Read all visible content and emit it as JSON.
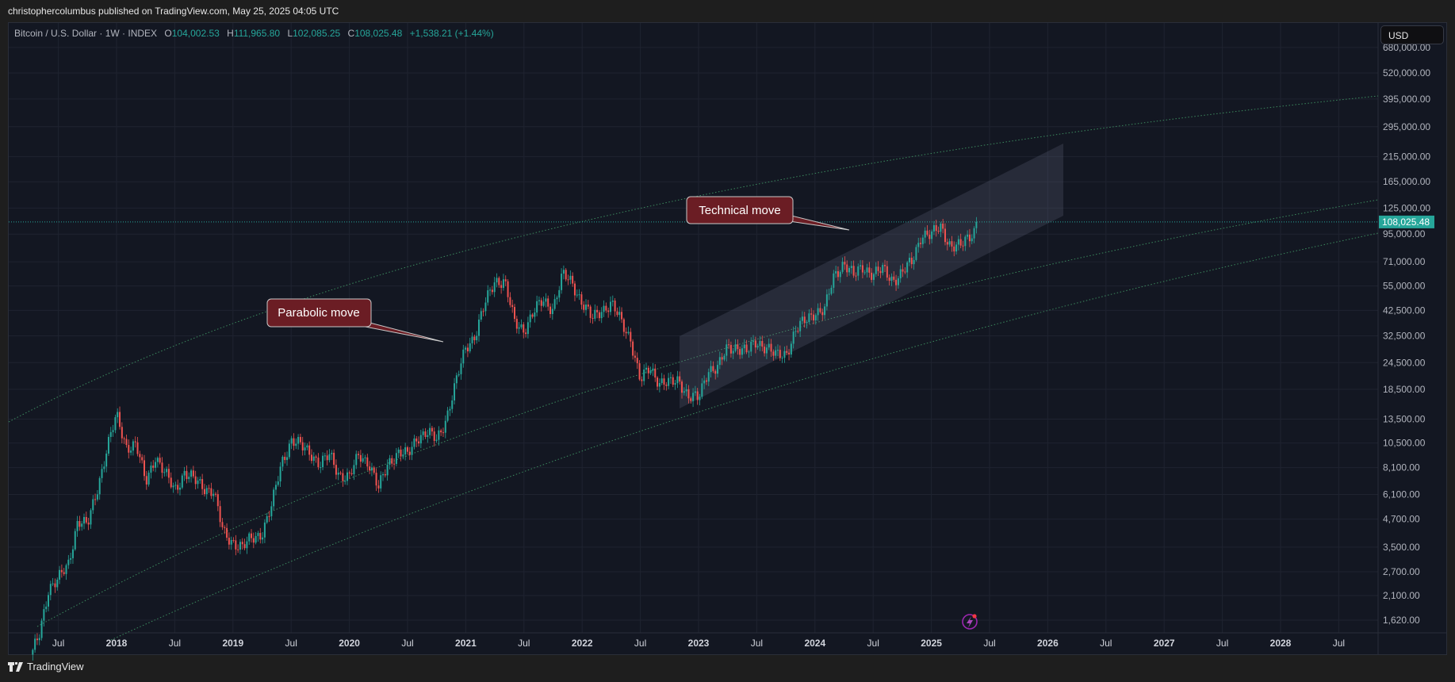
{
  "header": {
    "published": "christophercolumbus published on TradingView.com, May 25, 2025 04:05 UTC"
  },
  "legend": {
    "symbol": "Bitcoin / U.S. Dollar · 1W · INDEX",
    "open_label": "O",
    "open": "104,002.53",
    "high_label": "H",
    "high": "111,965.80",
    "low_label": "L",
    "low": "102,085.25",
    "close_label": "C",
    "close": "108,025.48",
    "change": "+1,538.21 (+1.44%)"
  },
  "currency_button": "USD",
  "footer": {
    "brand": "TradingView"
  },
  "colors": {
    "background": "#131722",
    "up": "#26a69a",
    "down": "#ef5350",
    "band": "#3c8a5e",
    "callout": "#6b1d24",
    "alert_icon": "#9c27b0"
  },
  "icons": {
    "alert": "lightning-alert-icon",
    "logo": "tradingview-logo-icon"
  },
  "chart_data": {
    "type": "candlestick",
    "interval": "1W",
    "y_scale": "log",
    "ylim": [
      1450,
      700000
    ],
    "xlim": [
      "2017-04",
      "2028-12"
    ],
    "grid": true,
    "y_ticks": [
      "680,000.00",
      "520,000.00",
      "395,000.00",
      "295,000.00",
      "215,000.00",
      "165,000.00",
      "125,000.00",
      "95,000.00",
      "71,000.00",
      "55,000.00",
      "42,500.00",
      "32,500.00",
      "24,500.00",
      "18,500.00",
      "13,500.00",
      "10,500.00",
      "8,100.00",
      "6,100.00",
      "4,700.00",
      "3,500.00",
      "2,700.00",
      "2,100.00",
      "1,620.00"
    ],
    "x_ticks": [
      "Jul",
      "2018",
      "Jul",
      "2019",
      "Jul",
      "2020",
      "Jul",
      "2021",
      "Jul",
      "2022",
      "Jul",
      "2023",
      "Jul",
      "2024",
      "Jul",
      "2025",
      "Jul",
      "2026",
      "Jul",
      "2027",
      "Jul",
      "2028",
      "Jul"
    ],
    "last_price": "108,025.48",
    "last_price_value": 108025.48,
    "monthly_close": [
      [
        "2017-04",
        1350
      ],
      [
        "2017-05",
        2300
      ],
      [
        "2017-06",
        2480
      ],
      [
        "2017-07",
        2870
      ],
      [
        "2017-08",
        4700
      ],
      [
        "2017-09",
        4340
      ],
      [
        "2017-10",
        6450
      ],
      [
        "2017-11",
        9950
      ],
      [
        "2017-12",
        13850
      ],
      [
        "2018-01",
        10200
      ],
      [
        "2018-02",
        10300
      ],
      [
        "2018-03",
        6900
      ],
      [
        "2018-04",
        9240
      ],
      [
        "2018-05",
        7500
      ],
      [
        "2018-06",
        6400
      ],
      [
        "2018-07",
        7730
      ],
      [
        "2018-08",
        7030
      ],
      [
        "2018-09",
        6630
      ],
      [
        "2018-10",
        6320
      ],
      [
        "2018-11",
        4020
      ],
      [
        "2018-12",
        3740
      ],
      [
        "2019-01",
        3460
      ],
      [
        "2019-02",
        3850
      ],
      [
        "2019-03",
        4100
      ],
      [
        "2019-04",
        5350
      ],
      [
        "2019-05",
        8570
      ],
      [
        "2019-06",
        10800
      ],
      [
        "2019-07",
        10080
      ],
      [
        "2019-08",
        9600
      ],
      [
        "2019-09",
        8300
      ],
      [
        "2019-10",
        9200
      ],
      [
        "2019-11",
        7570
      ],
      [
        "2019-12",
        7200
      ],
      [
        "2020-01",
        9350
      ],
      [
        "2020-02",
        8600
      ],
      [
        "2020-03",
        6400
      ],
      [
        "2020-04",
        8600
      ],
      [
        "2020-05",
        9450
      ],
      [
        "2020-06",
        9140
      ],
      [
        "2020-07",
        11350
      ],
      [
        "2020-08",
        11650
      ],
      [
        "2020-09",
        10780
      ],
      [
        "2020-10",
        13800
      ],
      [
        "2020-11",
        19700
      ],
      [
        "2020-12",
        29000
      ],
      [
        "2021-01",
        33100
      ],
      [
        "2021-02",
        45200
      ],
      [
        "2021-03",
        58900
      ],
      [
        "2021-04",
        57700
      ],
      [
        "2021-05",
        37300
      ],
      [
        "2021-06",
        35000
      ],
      [
        "2021-07",
        41500
      ],
      [
        "2021-08",
        47100
      ],
      [
        "2021-09",
        43800
      ],
      [
        "2021-10",
        61300
      ],
      [
        "2021-11",
        57000
      ],
      [
        "2021-12",
        46300
      ],
      [
        "2022-01",
        38500
      ],
      [
        "2022-02",
        43200
      ],
      [
        "2022-03",
        45500
      ],
      [
        "2022-04",
        37700
      ],
      [
        "2022-05",
        31800
      ],
      [
        "2022-06",
        19900
      ],
      [
        "2022-07",
        23300
      ],
      [
        "2022-08",
        20050
      ],
      [
        "2022-09",
        19400
      ],
      [
        "2022-10",
        20500
      ],
      [
        "2022-11",
        17150
      ],
      [
        "2022-12",
        16550
      ],
      [
        "2023-01",
        23100
      ],
      [
        "2023-02",
        23150
      ],
      [
        "2023-03",
        28500
      ],
      [
        "2023-04",
        29250
      ],
      [
        "2023-05",
        27200
      ],
      [
        "2023-06",
        30500
      ],
      [
        "2023-07",
        29200
      ],
      [
        "2023-08",
        25950
      ],
      [
        "2023-09",
        26950
      ],
      [
        "2023-10",
        34500
      ],
      [
        "2023-11",
        37700
      ],
      [
        "2023-12",
        42300
      ],
      [
        "2024-01",
        42600
      ],
      [
        "2024-02",
        61200
      ],
      [
        "2024-03",
        71300
      ],
      [
        "2024-04",
        60600
      ],
      [
        "2024-05",
        67500
      ],
      [
        "2024-06",
        62700
      ],
      [
        "2024-07",
        64600
      ],
      [
        "2024-08",
        58900
      ],
      [
        "2024-09",
        63300
      ],
      [
        "2024-10",
        70200
      ],
      [
        "2024-11",
        96400
      ],
      [
        "2024-12",
        93400
      ],
      [
        "2025-01",
        102400
      ],
      [
        "2025-02",
        84300
      ],
      [
        "2025-03",
        82500
      ],
      [
        "2025-04",
        94200
      ],
      [
        "2025-05",
        108025.48
      ]
    ],
    "annotations": [
      "Parabolic move",
      "Technical move"
    ]
  }
}
